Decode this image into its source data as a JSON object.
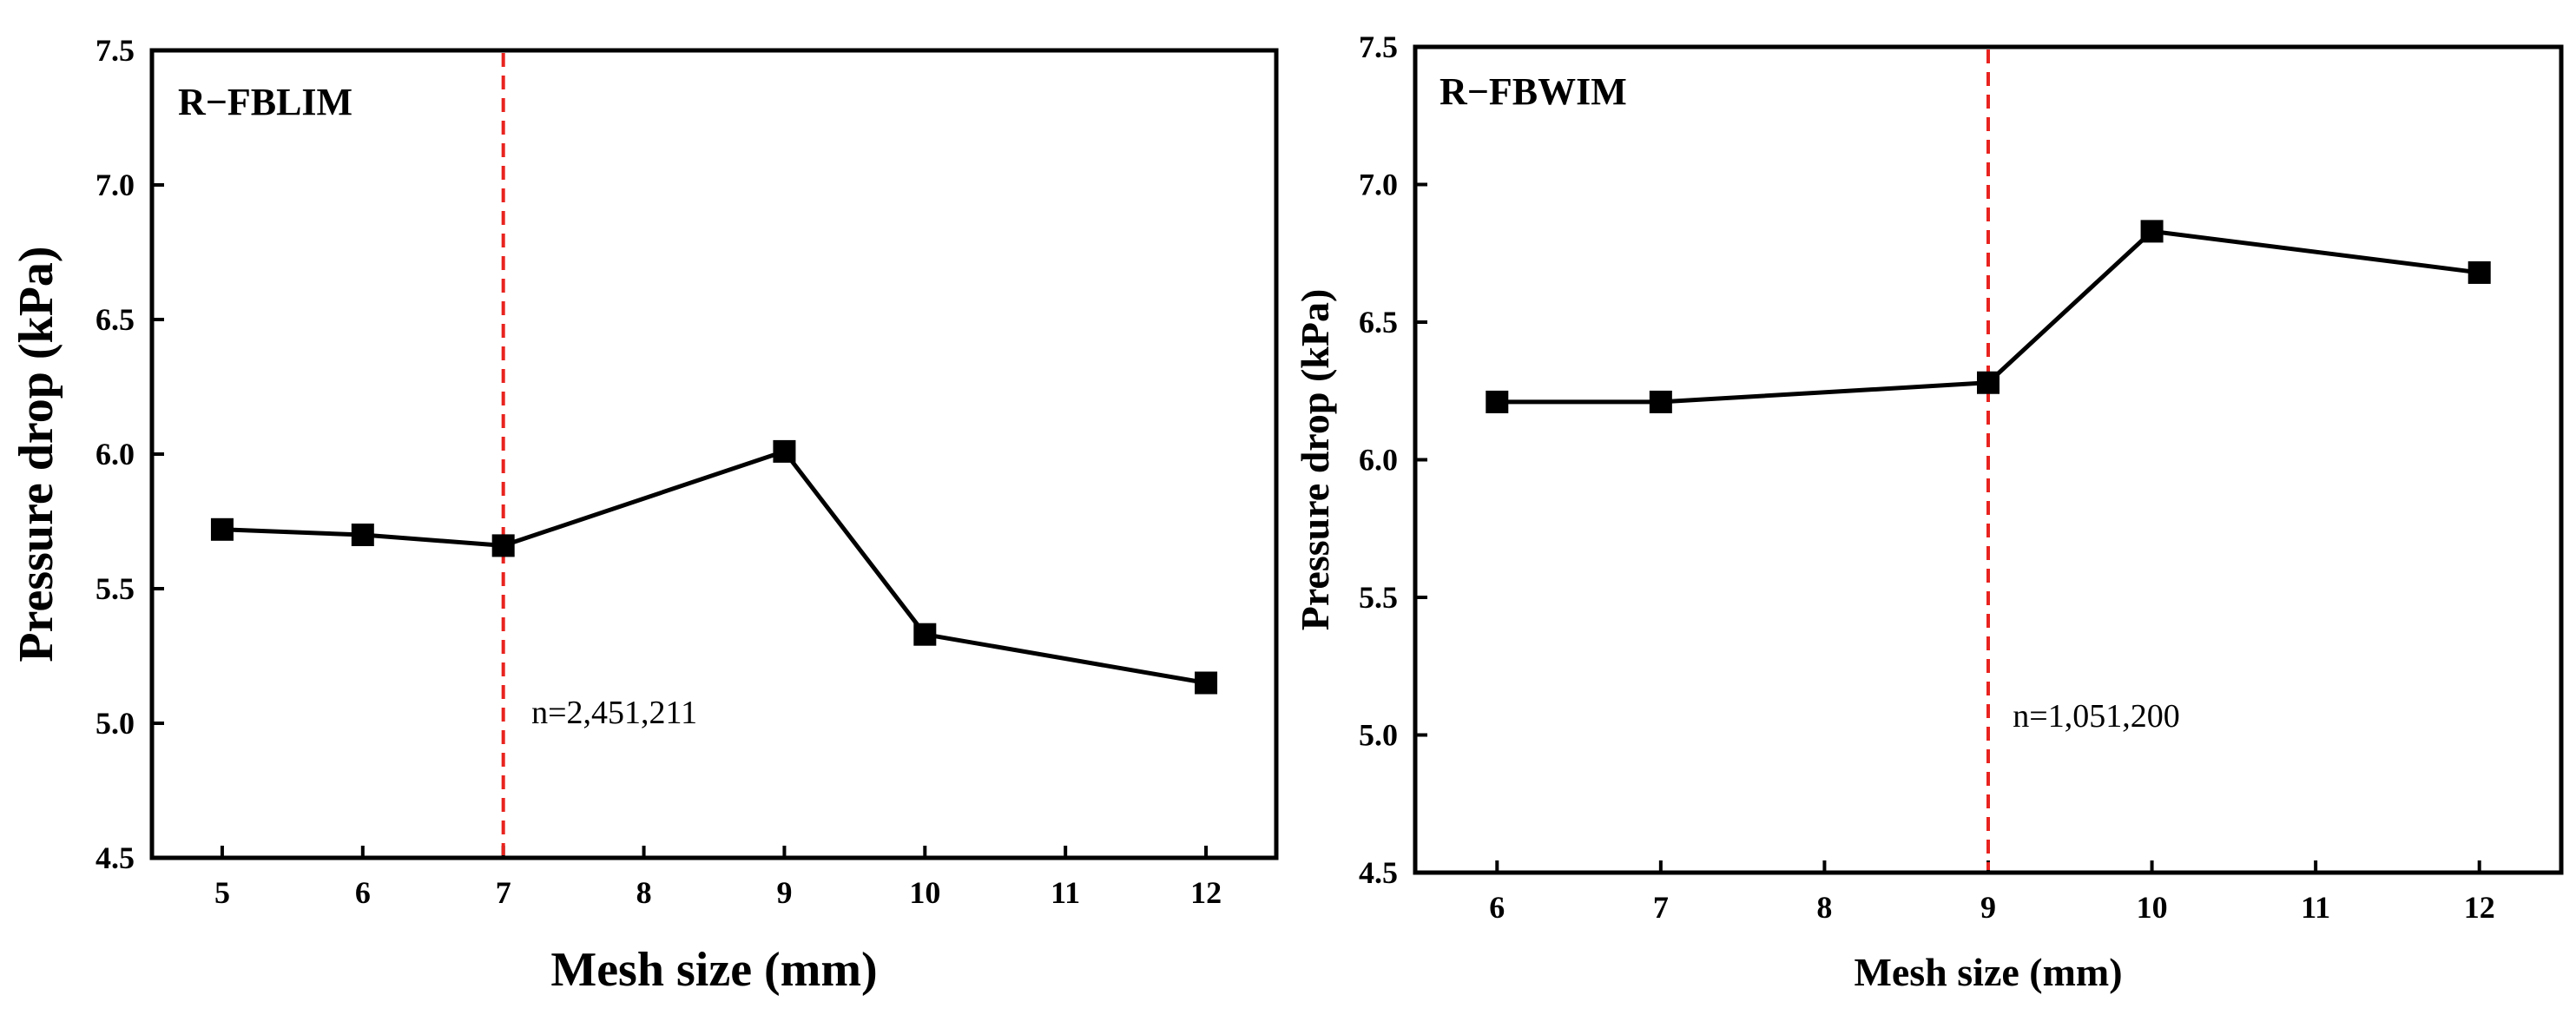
{
  "colors": {
    "axis": "#000000",
    "series": "#000000",
    "reference_line": "#e8231f"
  },
  "chart_data": [
    {
      "type": "line",
      "title": "R−FBLIM",
      "xlabel": "Mesh size (mm)",
      "ylabel": "Pressure drop (kPa)",
      "xlim": [
        4.5,
        12.5
      ],
      "ylim": [
        4.5,
        7.5
      ],
      "xticks": [
        5,
        6,
        7,
        8,
        9,
        10,
        11,
        12
      ],
      "yticks": [
        4.5,
        5.0,
        5.5,
        6.0,
        6.5,
        7.0,
        7.5
      ],
      "ytick_labels": [
        "4.5",
        "5.0",
        "5.5",
        "6.0",
        "6.5",
        "7.0",
        "7.5"
      ],
      "series": [
        {
          "name": "Pressure drop",
          "marker": "square",
          "x": [
            5,
            6,
            7,
            9,
            10,
            12
          ],
          "y": [
            5.72,
            5.7,
            5.66,
            6.01,
            5.33,
            5.15
          ]
        }
      ],
      "reference_line": {
        "x": 7,
        "style": "dashed"
      },
      "annotation": {
        "text": "n=2,451,211",
        "x": 7.2,
        "y": 5.0
      },
      "grid": false
    },
    {
      "type": "line",
      "title": "R−FBWIM",
      "xlabel": "Mesh size (mm)",
      "ylabel": "Pressure drop (kPa)",
      "xlim": [
        5.5,
        12.5
      ],
      "ylim": [
        4.5,
        7.5
      ],
      "xticks": [
        6,
        7,
        8,
        9,
        10,
        11,
        12
      ],
      "yticks": [
        4.5,
        5.0,
        5.5,
        6.0,
        6.5,
        7.0,
        7.5
      ],
      "ytick_labels": [
        "4.5",
        "5.0",
        "5.5",
        "6.0",
        "6.5",
        "7.0",
        "7.5"
      ],
      "series": [
        {
          "name": "Pressure drop",
          "marker": "square",
          "x": [
            6,
            7,
            9,
            10,
            12
          ],
          "y": [
            6.21,
            6.21,
            6.28,
            6.83,
            6.68
          ]
        }
      ],
      "reference_line": {
        "x": 9,
        "style": "dashed"
      },
      "annotation": {
        "text": "n=1,051,200",
        "x": 9.15,
        "y": 5.03
      },
      "grid": false
    }
  ]
}
